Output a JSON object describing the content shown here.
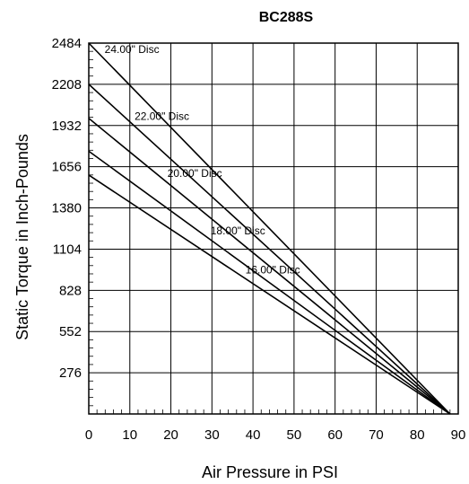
{
  "chart_data": {
    "type": "line",
    "title": "BC288S",
    "xlabel": "Air Pressure in PSI",
    "ylabel": "Static Torque in Inch-Pounds",
    "xlim": [
      0,
      90
    ],
    "ylim": [
      0,
      2484
    ],
    "x_ticks": [
      "0",
      "10",
      "20",
      "30",
      "40",
      "50",
      "60",
      "70",
      "80",
      "90"
    ],
    "y_ticks": [
      "276",
      "552",
      "828",
      "1104",
      "1380",
      "1656",
      "1932",
      "2208",
      "2484"
    ],
    "grid": true,
    "series": [
      {
        "name": "24.00\" Disc",
        "x": [
          0,
          88
        ],
        "y": [
          2484,
          0
        ]
      },
      {
        "name": "22.00\" Disc",
        "x": [
          0,
          88
        ],
        "y": [
          2208,
          0
        ]
      },
      {
        "name": "20.00\" Disc",
        "x": [
          0,
          88
        ],
        "y": [
          1980,
          0
        ]
      },
      {
        "name": "18.00\" Disc",
        "x": [
          0,
          88
        ],
        "y": [
          1760,
          0
        ]
      },
      {
        "name": "16.00\" Disc",
        "x": [
          0,
          88
        ],
        "y": [
          1600,
          0
        ]
      }
    ]
  }
}
